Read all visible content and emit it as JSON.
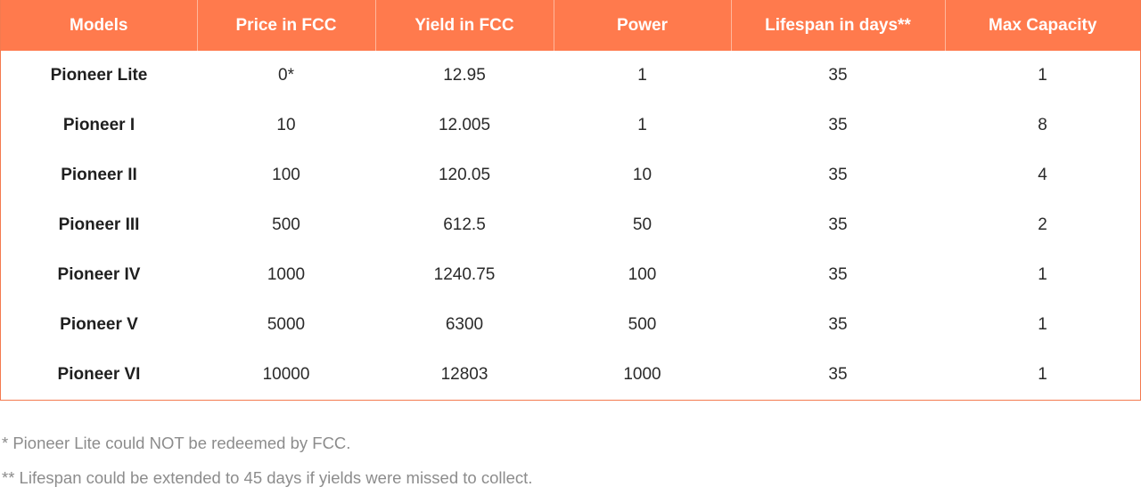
{
  "table": {
    "headers": [
      "Models",
      "Price in FCC",
      "Yield in FCC",
      "Power",
      "Lifespan in days**",
      "Max Capacity"
    ],
    "rows": [
      [
        "Pioneer Lite",
        "0*",
        "12.95",
        "1",
        "35",
        "1"
      ],
      [
        "Pioneer I",
        "10",
        "12.005",
        "1",
        "35",
        "8"
      ],
      [
        "Pioneer II",
        "100",
        "120.05",
        "10",
        "35",
        "4"
      ],
      [
        "Pioneer III",
        "500",
        "612.5",
        "50",
        "35",
        "2"
      ],
      [
        "Pioneer IV",
        "1000",
        "1240.75",
        "100",
        "35",
        "1"
      ],
      [
        "Pioneer V",
        "5000",
        "6300",
        "500",
        "35",
        "1"
      ],
      [
        "Pioneer VI",
        "10000",
        "12803",
        "1000",
        "35",
        "1"
      ]
    ]
  },
  "notes": {
    "note1": "* Pioneer Lite could NOT be redeemed by FCC.",
    "note2": "** Lifespan could be extended to 45 days if yields were missed to collect."
  },
  "colors": {
    "header_bg": "#ff7a4d",
    "header_text": "#ffffff",
    "border": "#f47a4f",
    "note_text": "#8c8c8c"
  }
}
